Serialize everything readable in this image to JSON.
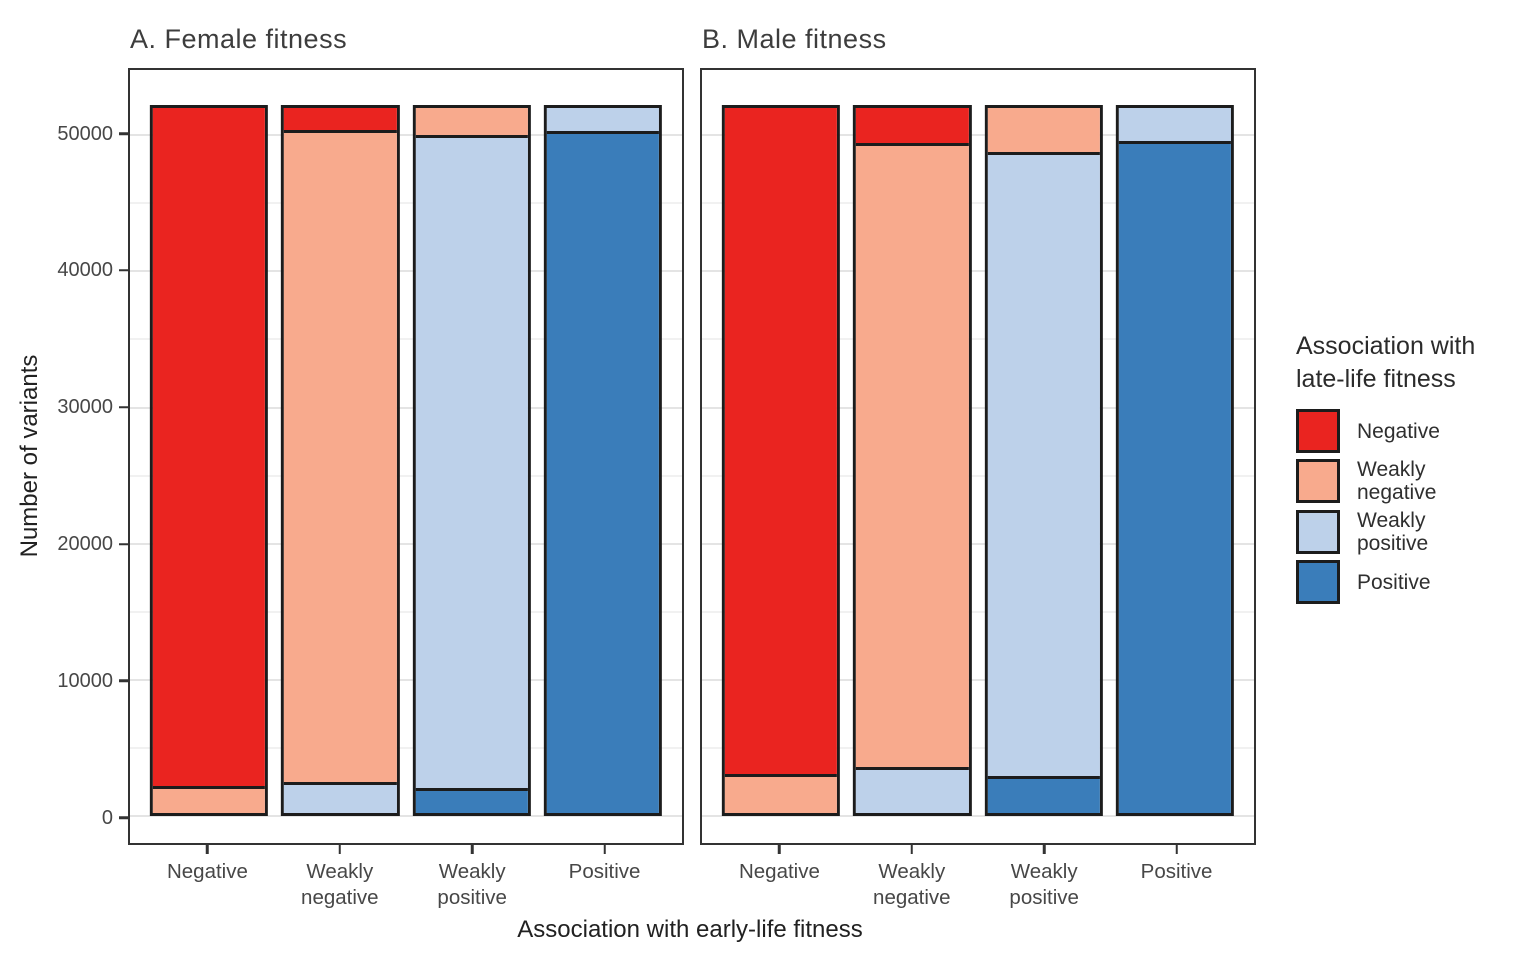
{
  "figure": {
    "background": "#ffffff",
    "legend": {
      "title": "Association with\nlate-life fitness",
      "entries": [
        {
          "label": "Negative",
          "color": "#EA2420"
        },
        {
          "label": "Weakly\nnegative",
          "color": "#F8AA8D"
        },
        {
          "label": "Weakly\npositive",
          "color": "#BDD1EA"
        },
        {
          "label": "Positive",
          "color": "#3A7DBA"
        }
      ]
    }
  },
  "chart_data": {
    "type": "bar",
    "stacked": true,
    "orientation": "vertical",
    "xlabel": "Association with early-life fitness",
    "ylabel": "Number of variants",
    "categories": [
      "Negative",
      "Weakly\nnegative",
      "Weakly\npositive",
      "Positive"
    ],
    "legend_title": "Association with late-life fitness",
    "legend_position": "right",
    "grid": "horizontal-only",
    "y_ticks": [
      0,
      10000,
      20000,
      30000,
      40000,
      50000
    ],
    "y_tick_labels": [
      "0",
      "10000",
      "20000",
      "30000",
      "40000",
      "50000"
    ],
    "y_minor_ticks": [
      5000,
      15000,
      25000,
      35000,
      45000
    ],
    "ylim": [
      0,
      52200
    ],
    "y_range_rendered": [
      -2000,
      54800
    ],
    "bar_total_each": 52200,
    "stack_order_top_to_bottom": [
      "Negative",
      "Weakly negative",
      "Weakly positive",
      "Positive"
    ],
    "series_colors": {
      "Negative": "#EA2420",
      "Weakly negative": "#F8AA8D",
      "Weakly positive": "#BDD1EA",
      "Positive": "#3A7DBA"
    },
    "panels": [
      {
        "panel_label": "A",
        "title": "A. Female fitness",
        "series": [
          {
            "name": "Negative",
            "color": "#EA2420",
            "values": [
              50450,
              1600,
              0,
              0
            ]
          },
          {
            "name": "Weakly negative",
            "color": "#F8AA8D",
            "values": [
              1750,
              48500,
              2000,
              0
            ]
          },
          {
            "name": "Weakly positive",
            "color": "#BDD1EA",
            "values": [
              0,
              2100,
              48600,
              1650
            ]
          },
          {
            "name": "Positive",
            "color": "#3A7DBA",
            "values": [
              0,
              0,
              1600,
              50550
            ]
          }
        ]
      },
      {
        "panel_label": "B",
        "title": "B. Male fitness",
        "series": [
          {
            "name": "Negative",
            "color": "#EA2420",
            "values": [
              49550,
              2600,
              0,
              0
            ]
          },
          {
            "name": "Weakly negative",
            "color": "#F8AA8D",
            "values": [
              2650,
              46400,
              3250,
              0
            ]
          },
          {
            "name": "Weakly positive",
            "color": "#BDD1EA",
            "values": [
              0,
              3200,
              46450,
              2450
            ]
          },
          {
            "name": "Positive",
            "color": "#3A7DBA",
            "values": [
              0,
              0,
              2500,
              49750
            ]
          }
        ]
      }
    ]
  }
}
